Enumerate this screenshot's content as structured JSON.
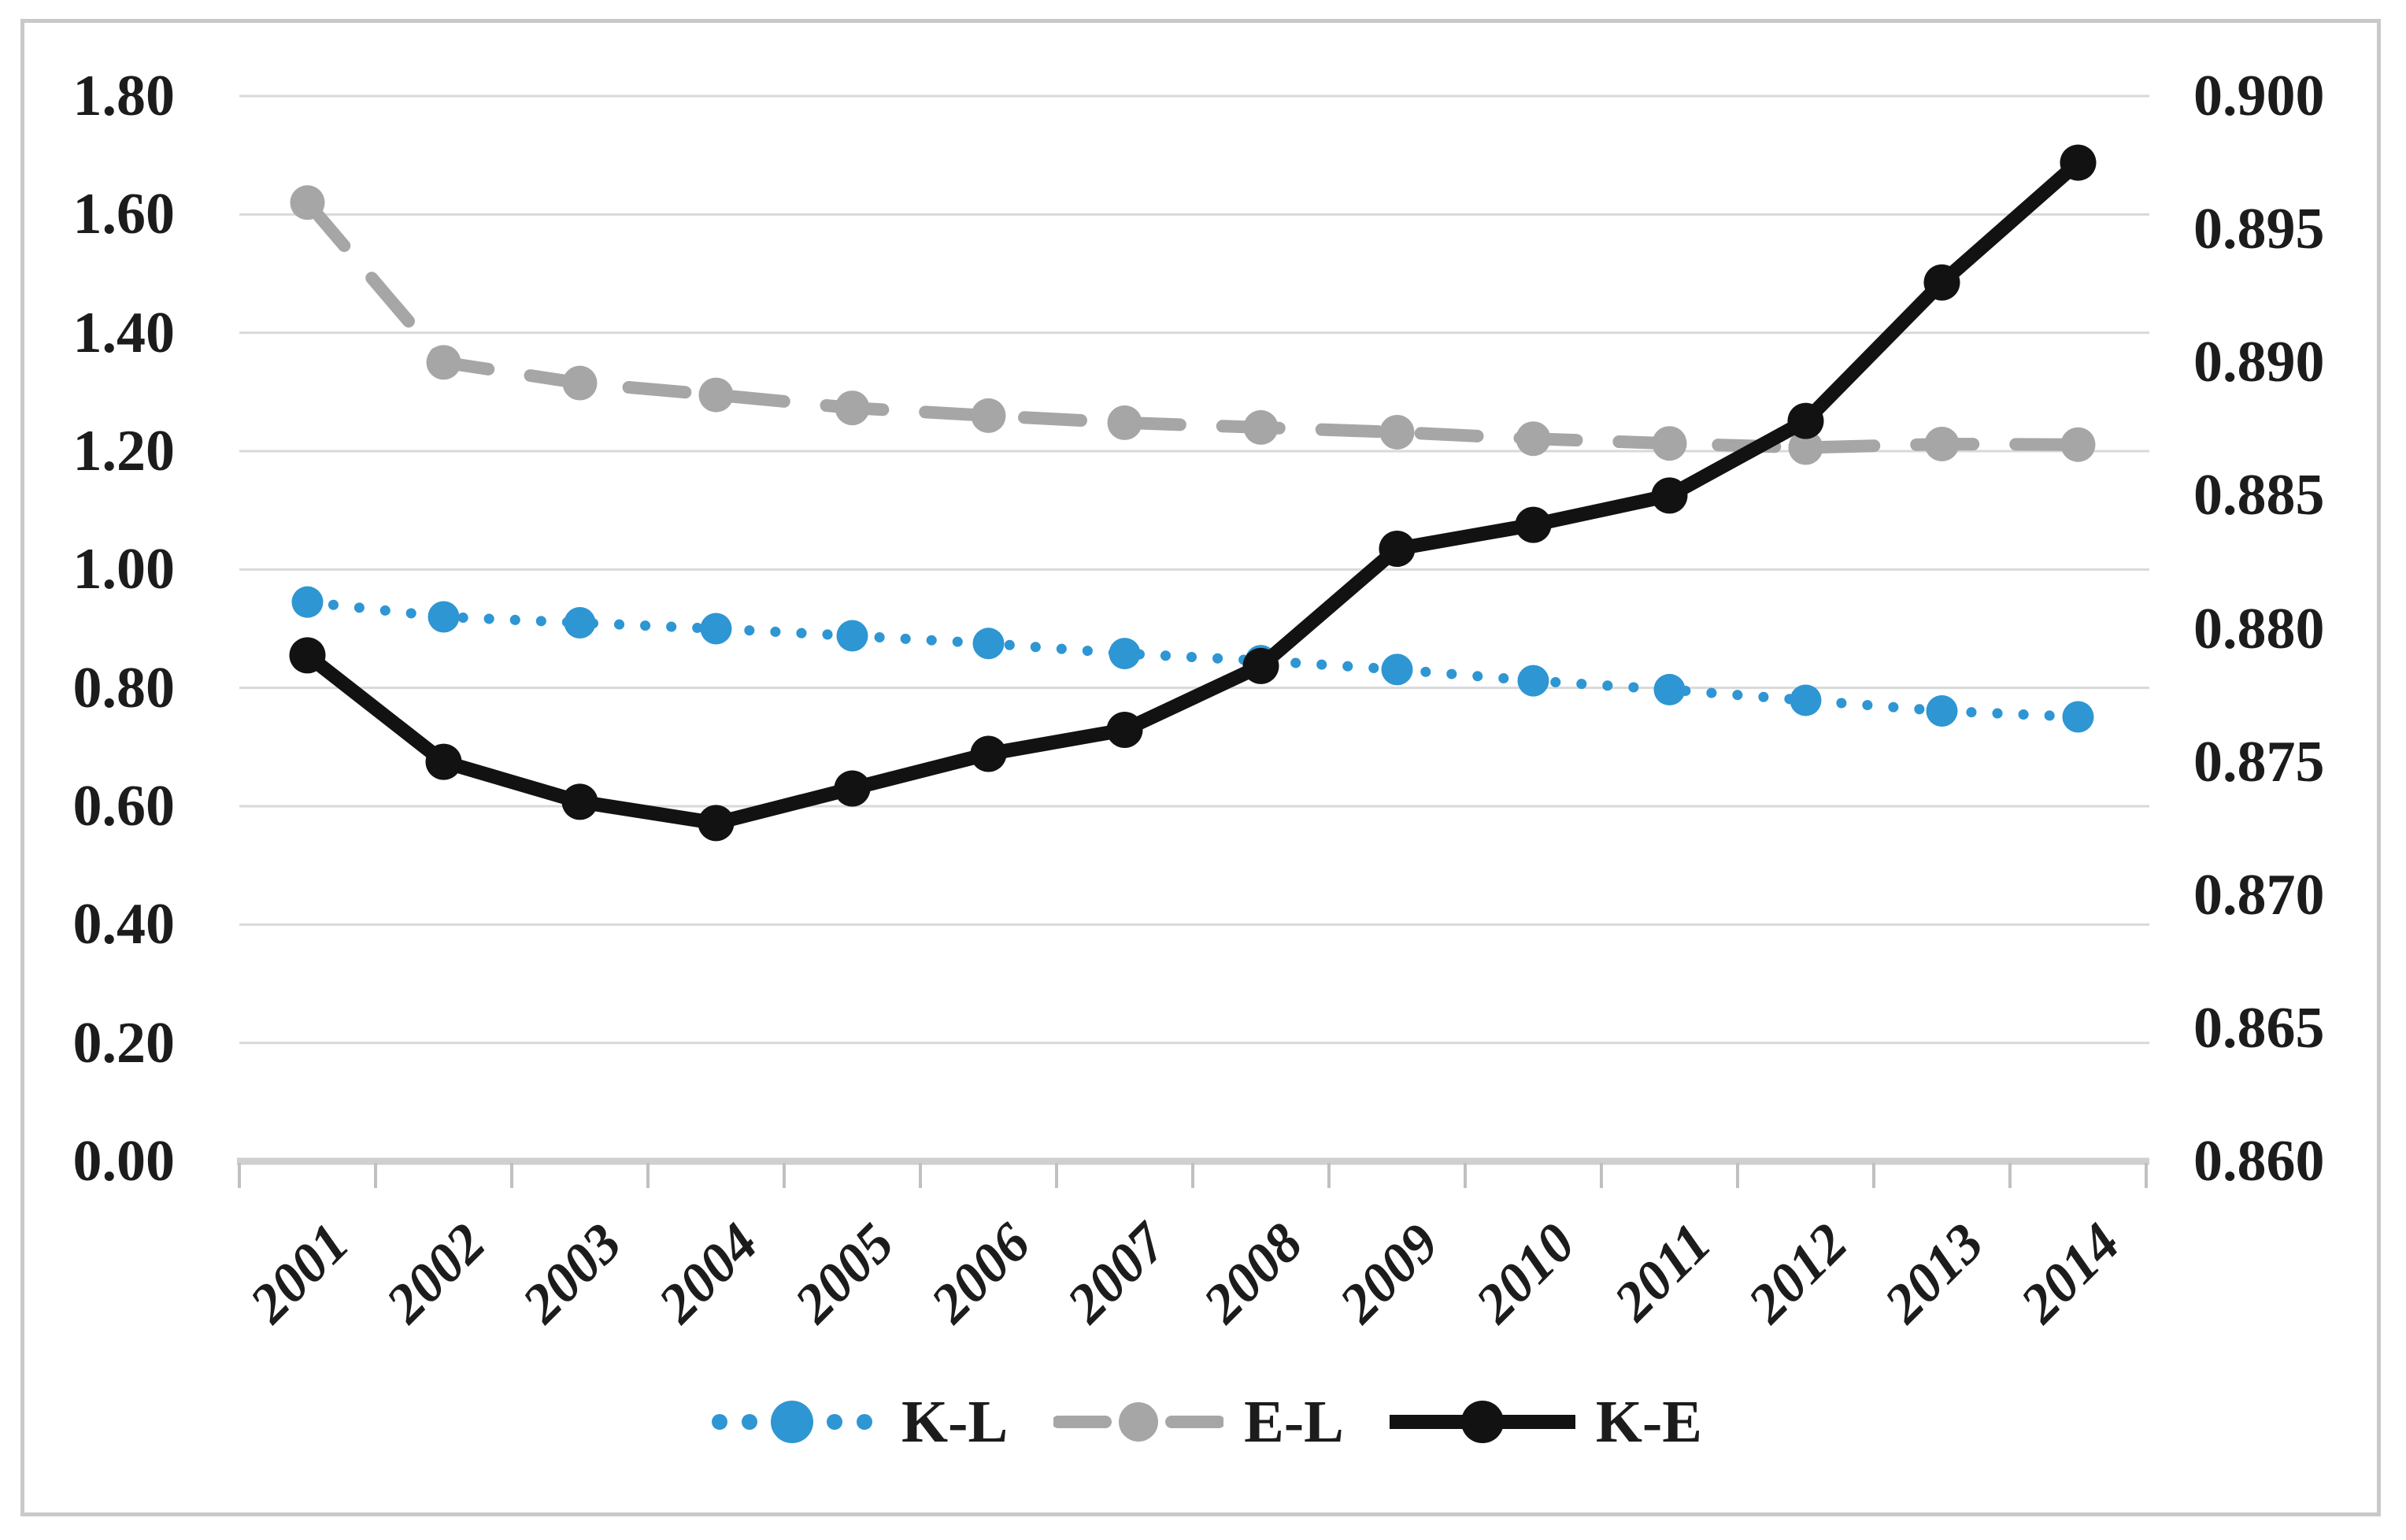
{
  "palette": {
    "background": "#ffffff",
    "figure_border": "#c9c9c9",
    "gridline": "#d9d9d9",
    "axis_line": "#cfcfcf",
    "tick": "#c0c0c0",
    "text": "#1c1c1c"
  },
  "chart_data": {
    "type": "line",
    "title": "",
    "grid": "horizontal",
    "legend_position": "bottom",
    "categories": [
      "2001",
      "2002",
      "2003",
      "2004",
      "2005",
      "2006",
      "2007",
      "2008",
      "2009",
      "2010",
      "2011",
      "2012",
      "2013",
      "2014"
    ],
    "left_axis": {
      "min": 0.0,
      "max": 1.8,
      "step": 0.2,
      "tick_labels": [
        "1.80",
        "1.60",
        "1.40",
        "1.20",
        "1.00",
        "0.80",
        "0.60",
        "0.40",
        "0.20",
        "0.00"
      ]
    },
    "right_axis": {
      "min": 0.86,
      "max": 0.9,
      "step": 0.005,
      "tick_labels": [
        "0.900",
        "0.895",
        "0.890",
        "0.885",
        "0.880",
        "0.875",
        "0.870",
        "0.865",
        "0.860"
      ]
    },
    "series": [
      {
        "name": "K-L",
        "axis": "left",
        "color": "#2e96d3",
        "line_style": "dotted",
        "values": [
          0.945,
          0.92,
          0.91,
          0.9,
          0.888,
          0.875,
          0.858,
          0.846,
          0.831,
          0.812,
          0.797,
          0.779,
          0.761,
          0.751
        ]
      },
      {
        "name": "E-L",
        "axis": "left",
        "color": "#a6a6a6",
        "line_style": "dashed",
        "values": [
          1.62,
          1.35,
          1.315,
          1.295,
          1.273,
          1.26,
          1.248,
          1.24,
          1.232,
          1.221,
          1.213,
          1.206,
          1.212,
          1.211
        ]
      },
      {
        "name": "K-E",
        "axis": "right",
        "color": "#121212",
        "line_style": "solid",
        "values": [
          0.879,
          0.875,
          0.8735,
          0.8727,
          0.874,
          0.8753,
          0.8762,
          0.8786,
          0.883,
          0.8839,
          0.885,
          0.8878,
          0.893,
          0.8975
        ]
      }
    ]
  }
}
